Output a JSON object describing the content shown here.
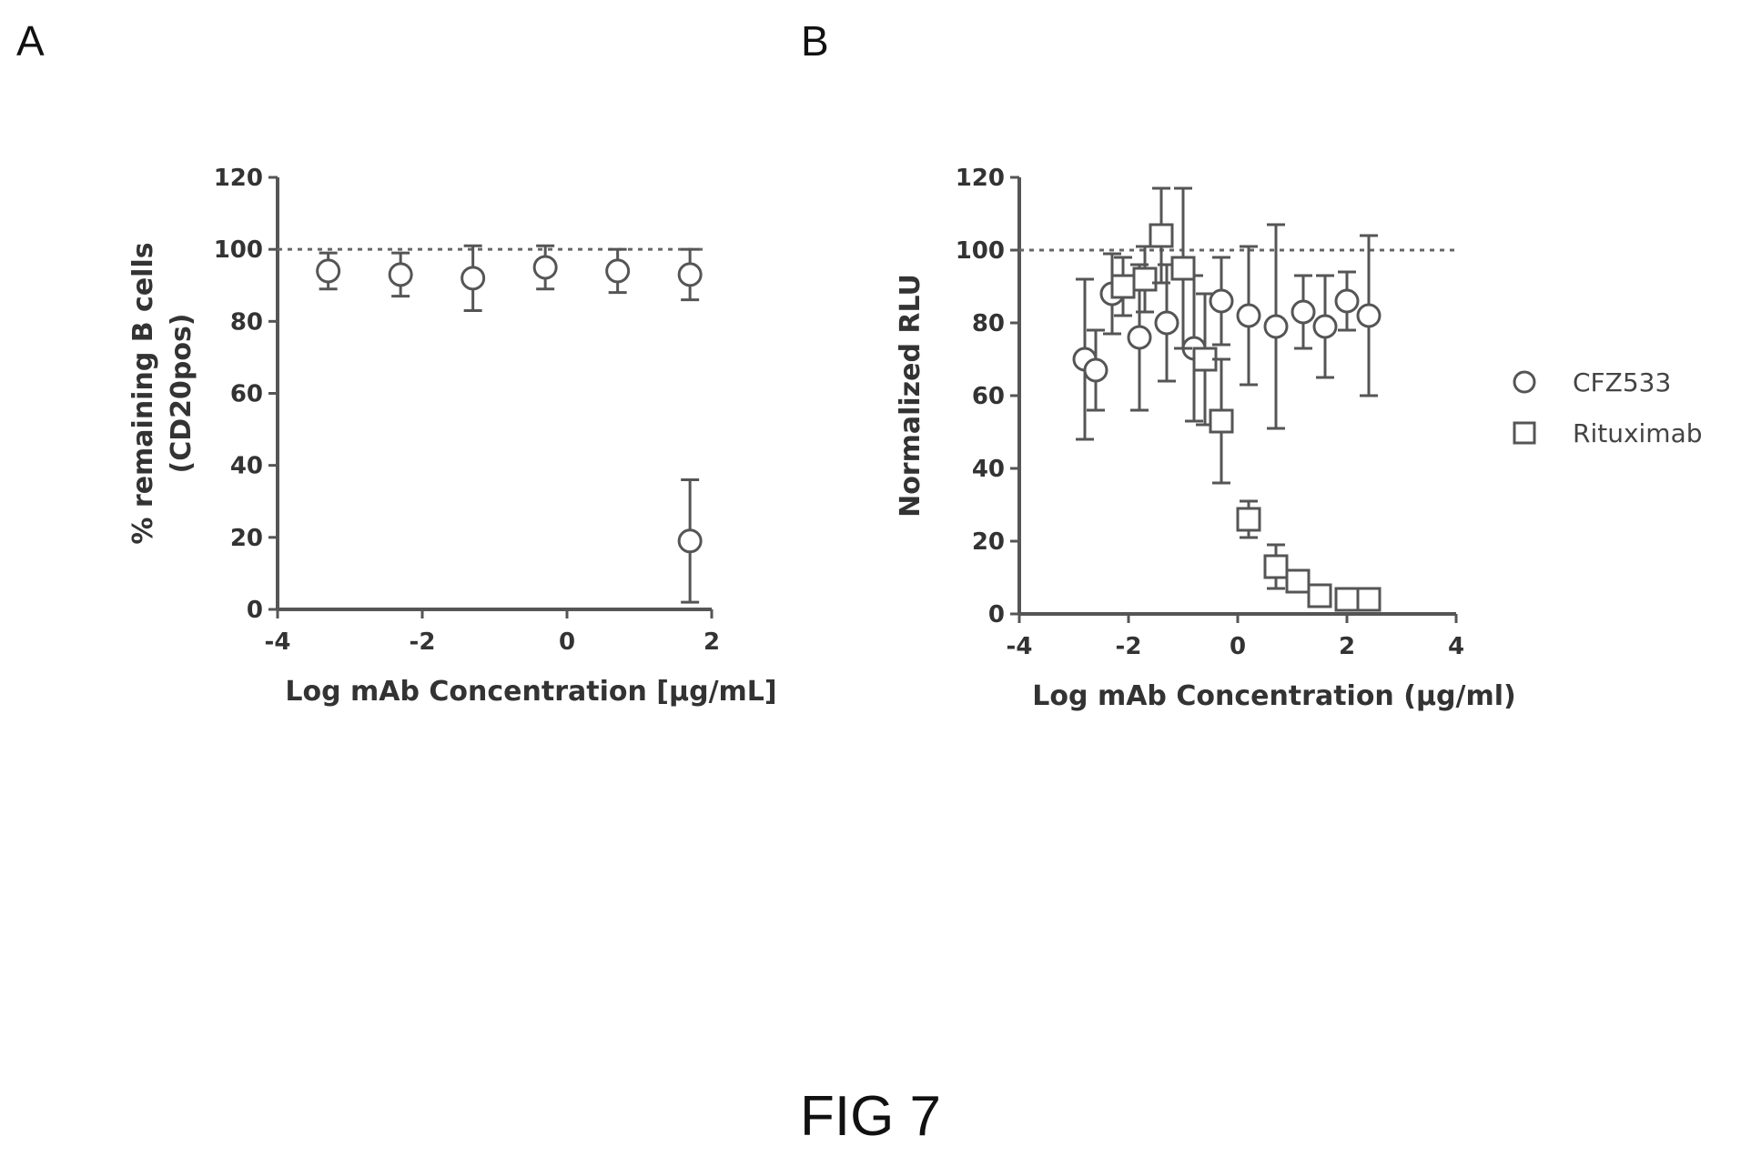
{
  "panels": {
    "a_label": "A",
    "b_label": "B"
  },
  "caption": "FIG 7",
  "chart_data": [
    {
      "type": "scatter",
      "xlabel": "Log mAb Concentration [µg/mL]",
      "ylabel_line1": "% remaining B cells",
      "ylabel_line2": "(CD20pos)",
      "xlim": [
        -4,
        2
      ],
      "ylim": [
        0,
        120
      ],
      "xticks": [
        -4,
        -2,
        0,
        2
      ],
      "yticks": [
        0,
        20,
        40,
        60,
        80,
        100,
        120
      ],
      "reference_line_y": 100,
      "marker": "circle",
      "series": [
        {
          "points": [
            {
              "x": -3.3,
              "y": 94,
              "err": 5
            },
            {
              "x": -2.3,
              "y": 93,
              "err": 6
            },
            {
              "x": -1.3,
              "y": 92,
              "err": 9
            },
            {
              "x": -0.3,
              "y": 95,
              "err": 6
            },
            {
              "x": 0.7,
              "y": 94,
              "err": 6
            },
            {
              "x": 1.7,
              "y": 93,
              "err": 7
            },
            {
              "x": 1.7,
              "y": 19,
              "err": 17
            }
          ]
        }
      ]
    },
    {
      "type": "scatter",
      "xlabel": "Log mAb Concentration (µg/ml)",
      "ylabel": "Normalized RLU",
      "xlim": [
        -4,
        4
      ],
      "ylim": [
        0,
        120
      ],
      "xticks": [
        -4,
        -2,
        0,
        2,
        4
      ],
      "yticks": [
        0,
        20,
        40,
        60,
        80,
        100,
        120
      ],
      "reference_line_y": 100,
      "legend_position": "right",
      "series": [
        {
          "name": "CFZ533",
          "marker": "circle",
          "points": [
            {
              "x": -2.8,
              "y": 70,
              "err": 22
            },
            {
              "x": -2.6,
              "y": 67,
              "err": 11
            },
            {
              "x": -2.3,
              "y": 88,
              "err": 11
            },
            {
              "x": -1.8,
              "y": 76,
              "err": 20
            },
            {
              "x": -1.3,
              "y": 80,
              "err": 16
            },
            {
              "x": -0.8,
              "y": 73,
              "err": 20
            },
            {
              "x": -0.3,
              "y": 86,
              "err": 12
            },
            {
              "x": 0.2,
              "y": 82,
              "err": 19
            },
            {
              "x": 0.7,
              "y": 79,
              "err": 28
            },
            {
              "x": 1.2,
              "y": 83,
              "err": 10
            },
            {
              "x": 1.6,
              "y": 79,
              "err": 14
            },
            {
              "x": 2.0,
              "y": 86,
              "err": 8
            },
            {
              "x": 2.4,
              "y": 82,
              "err": 22
            }
          ]
        },
        {
          "name": "Rituximab",
          "marker": "square",
          "points": [
            {
              "x": -2.1,
              "y": 90,
              "err": 8
            },
            {
              "x": -1.7,
              "y": 92,
              "err": 9
            },
            {
              "x": -1.4,
              "y": 104,
              "err": 13
            },
            {
              "x": -1.0,
              "y": 95,
              "err": 22
            },
            {
              "x": -0.6,
              "y": 70,
              "err": 18
            },
            {
              "x": -0.3,
              "y": 53,
              "err": 17
            },
            {
              "x": 0.2,
              "y": 26,
              "err": 5
            },
            {
              "x": 0.7,
              "y": 13,
              "err": 6
            },
            {
              "x": 1.1,
              "y": 9,
              "err": 3
            },
            {
              "x": 1.5,
              "y": 5,
              "err": 2
            },
            {
              "x": 2.0,
              "y": 4,
              "err": 2
            },
            {
              "x": 2.4,
              "y": 4,
              "err": 1
            }
          ]
        }
      ]
    }
  ]
}
